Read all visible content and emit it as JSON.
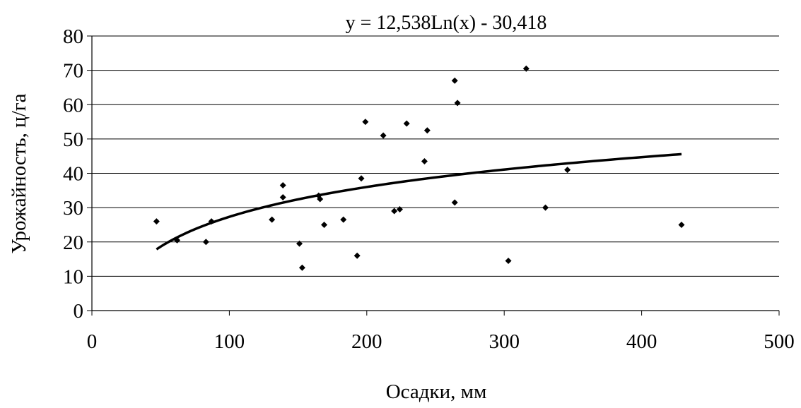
{
  "chart_data": {
    "type": "scatter",
    "title": "y = 12,538Ln(x) - 30,418",
    "xlabel": "Осадки, мм",
    "ylabel": "Урожайность, ц/га",
    "xlim": [
      0,
      500
    ],
    "ylim": [
      0,
      80
    ],
    "x_ticks": [
      "0",
      "100",
      "200",
      "300",
      "400",
      "500"
    ],
    "y_ticks": [
      "0",
      "10",
      "20",
      "30",
      "40",
      "50",
      "60",
      "70",
      "80"
    ],
    "grid": "horizontal",
    "legend": "none",
    "colors": {
      "points": "#000000",
      "trendline": "#000000",
      "grid": "#000000"
    },
    "points": [
      {
        "x": 47,
        "y": 26
      },
      {
        "x": 62,
        "y": 20.5
      },
      {
        "x": 83,
        "y": 20
      },
      {
        "x": 87,
        "y": 26
      },
      {
        "x": 131,
        "y": 26.5
      },
      {
        "x": 139,
        "y": 36.5
      },
      {
        "x": 139,
        "y": 33
      },
      {
        "x": 151,
        "y": 19.5
      },
      {
        "x": 153,
        "y": 12.5
      },
      {
        "x": 165,
        "y": 33.5
      },
      {
        "x": 166,
        "y": 32.5
      },
      {
        "x": 169,
        "y": 25
      },
      {
        "x": 183,
        "y": 26.5
      },
      {
        "x": 193,
        "y": 16
      },
      {
        "x": 196,
        "y": 38.5
      },
      {
        "x": 199,
        "y": 55
      },
      {
        "x": 212,
        "y": 51
      },
      {
        "x": 220,
        "y": 29
      },
      {
        "x": 224,
        "y": 29.5
      },
      {
        "x": 229,
        "y": 54.5
      },
      {
        "x": 242,
        "y": 43.5
      },
      {
        "x": 244,
        "y": 52.5
      },
      {
        "x": 264,
        "y": 67
      },
      {
        "x": 264,
        "y": 31.5
      },
      {
        "x": 266,
        "y": 60.5
      },
      {
        "x": 303,
        "y": 14.5
      },
      {
        "x": 316,
        "y": 70.5
      },
      {
        "x": 330,
        "y": 30
      },
      {
        "x": 346,
        "y": 41
      },
      {
        "x": 429,
        "y": 25
      }
    ],
    "trendline": {
      "type": "logarithmic",
      "a": 12.538,
      "b": -30.418,
      "x_range": [
        47,
        429
      ]
    }
  }
}
